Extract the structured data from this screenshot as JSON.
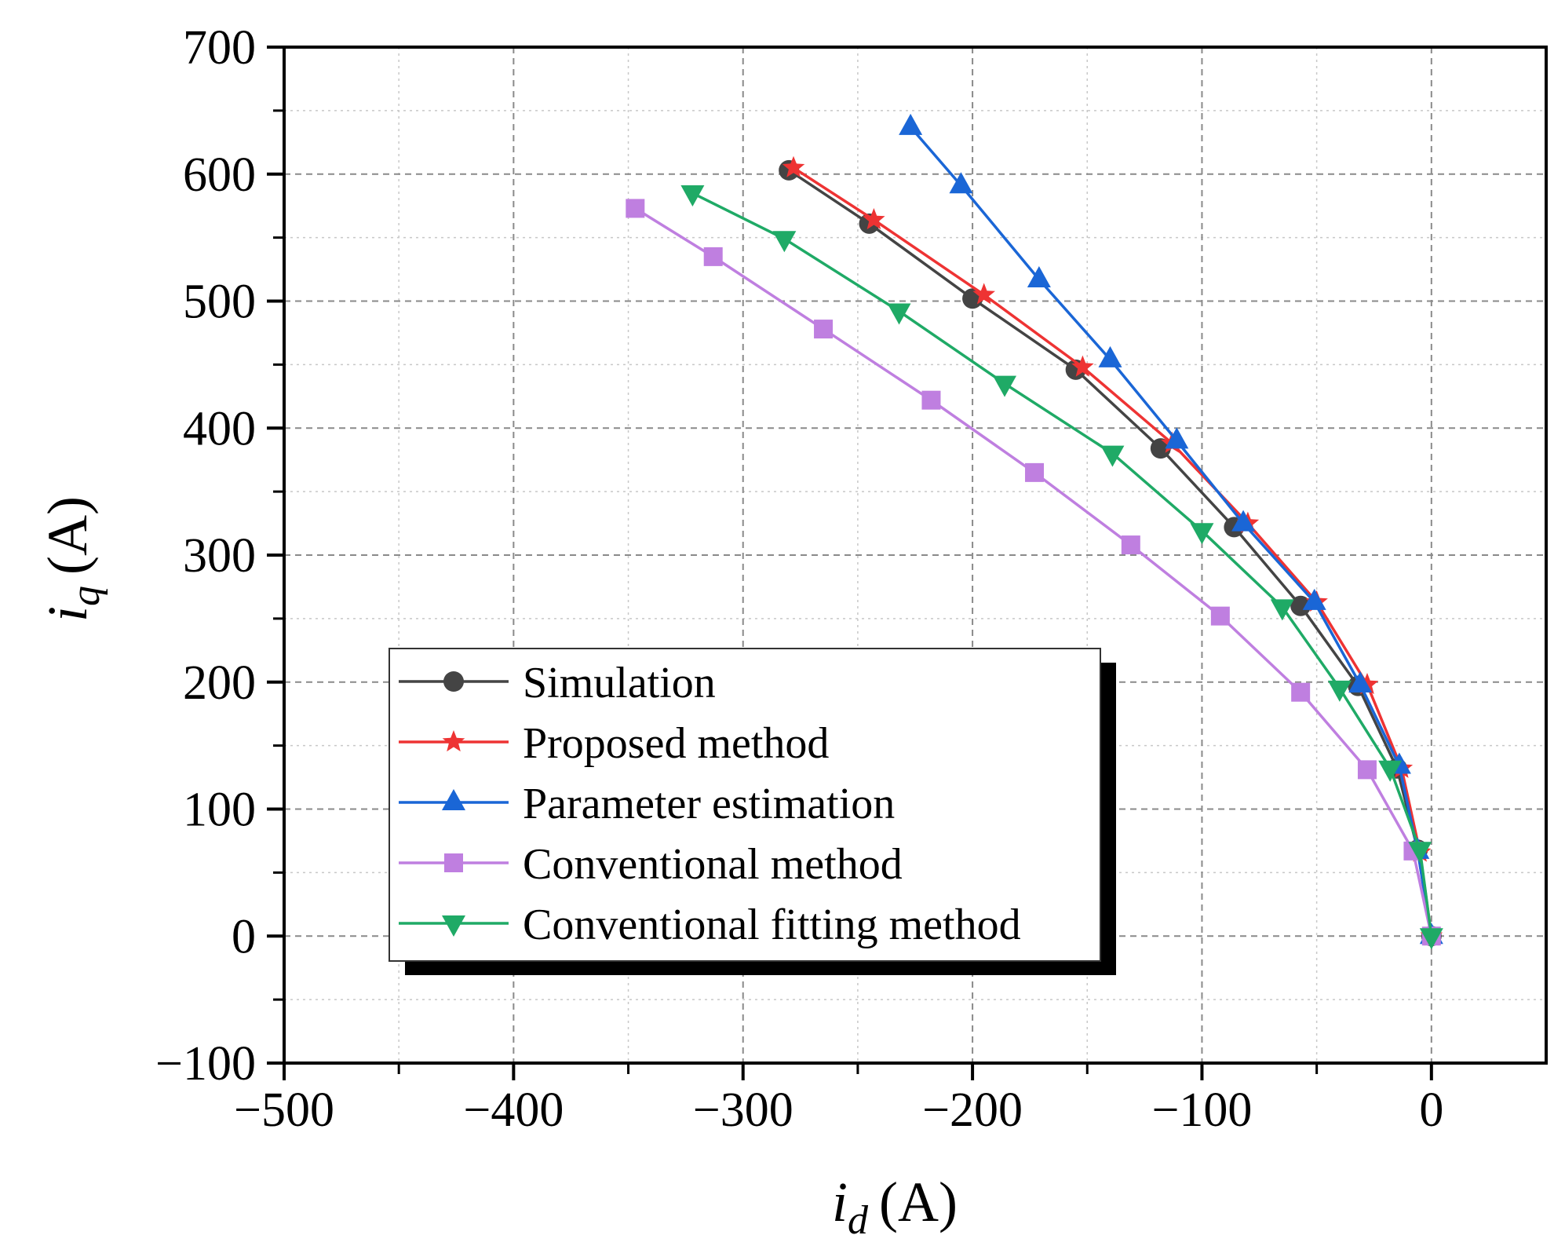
{
  "chart_data": {
    "type": "line",
    "title": "",
    "xlabel": {
      "var": "i",
      "sub": "d",
      "unit": "(A)"
    },
    "ylabel": {
      "var": "i",
      "sub": "q",
      "unit": "(A)"
    },
    "xlim": [
      -500,
      50
    ],
    "ylim": [
      -100,
      700
    ],
    "xticks": [
      -500,
      -400,
      -300,
      -200,
      -100,
      0
    ],
    "xtick_labels": [
      "−500",
      "−400",
      "−300",
      "−200",
      "−100",
      "0"
    ],
    "yticks": [
      -100,
      0,
      100,
      200,
      300,
      400,
      500,
      600,
      700
    ],
    "ytick_labels": [
      "−100",
      "0",
      "100",
      "200",
      "300",
      "400",
      "500",
      "600",
      "700"
    ],
    "grid": true,
    "legend_position": "lower-left",
    "series": [
      {
        "name": "Simulation",
        "color": "#444444",
        "marker": "circle",
        "x": [
          0,
          -6,
          -15,
          -32,
          -57,
          -86,
          -118,
          -155,
          -200,
          -245,
          -280
        ],
        "y": [
          0,
          68,
          132,
          197,
          260,
          322,
          384,
          446,
          502,
          561,
          603
        ]
      },
      {
        "name": "Proposed method",
        "color": "#ee3333",
        "marker": "star",
        "x": [
          0,
          -5,
          -13,
          -28,
          -50,
          -80,
          -113,
          -152,
          -195,
          -243,
          -278
        ],
        "y": [
          0,
          66,
          132,
          198,
          263,
          325,
          388,
          448,
          505,
          564,
          605
        ]
      },
      {
        "name": "Parameter estimation",
        "color": "#1a66d6",
        "marker": "triangle-up",
        "x": [
          0,
          -6,
          -14,
          -31,
          -51,
          -82,
          -111,
          -140,
          -171,
          -205,
          -227
        ],
        "y": [
          0,
          67,
          134,
          198,
          263,
          325,
          390,
          454,
          517,
          591,
          637
        ]
      },
      {
        "name": "Conventional method",
        "color": "#bf7fe0",
        "marker": "square",
        "x": [
          0,
          -8,
          -28,
          -57,
          -92,
          -131,
          -173,
          -218,
          -265,
          -313,
          -347
        ],
        "y": [
          0,
          67,
          131,
          192,
          252,
          308,
          365,
          422,
          478,
          535,
          573
        ]
      },
      {
        "name": "Conventional fitting method",
        "color": "#1faa66",
        "marker": "triangle-down",
        "x": [
          0,
          -5,
          -18,
          -40,
          -65,
          -100,
          -139,
          -186,
          -232,
          -282,
          -322
        ],
        "y": [
          0,
          68,
          132,
          195,
          259,
          319,
          380,
          435,
          492,
          549,
          585
        ]
      }
    ]
  }
}
